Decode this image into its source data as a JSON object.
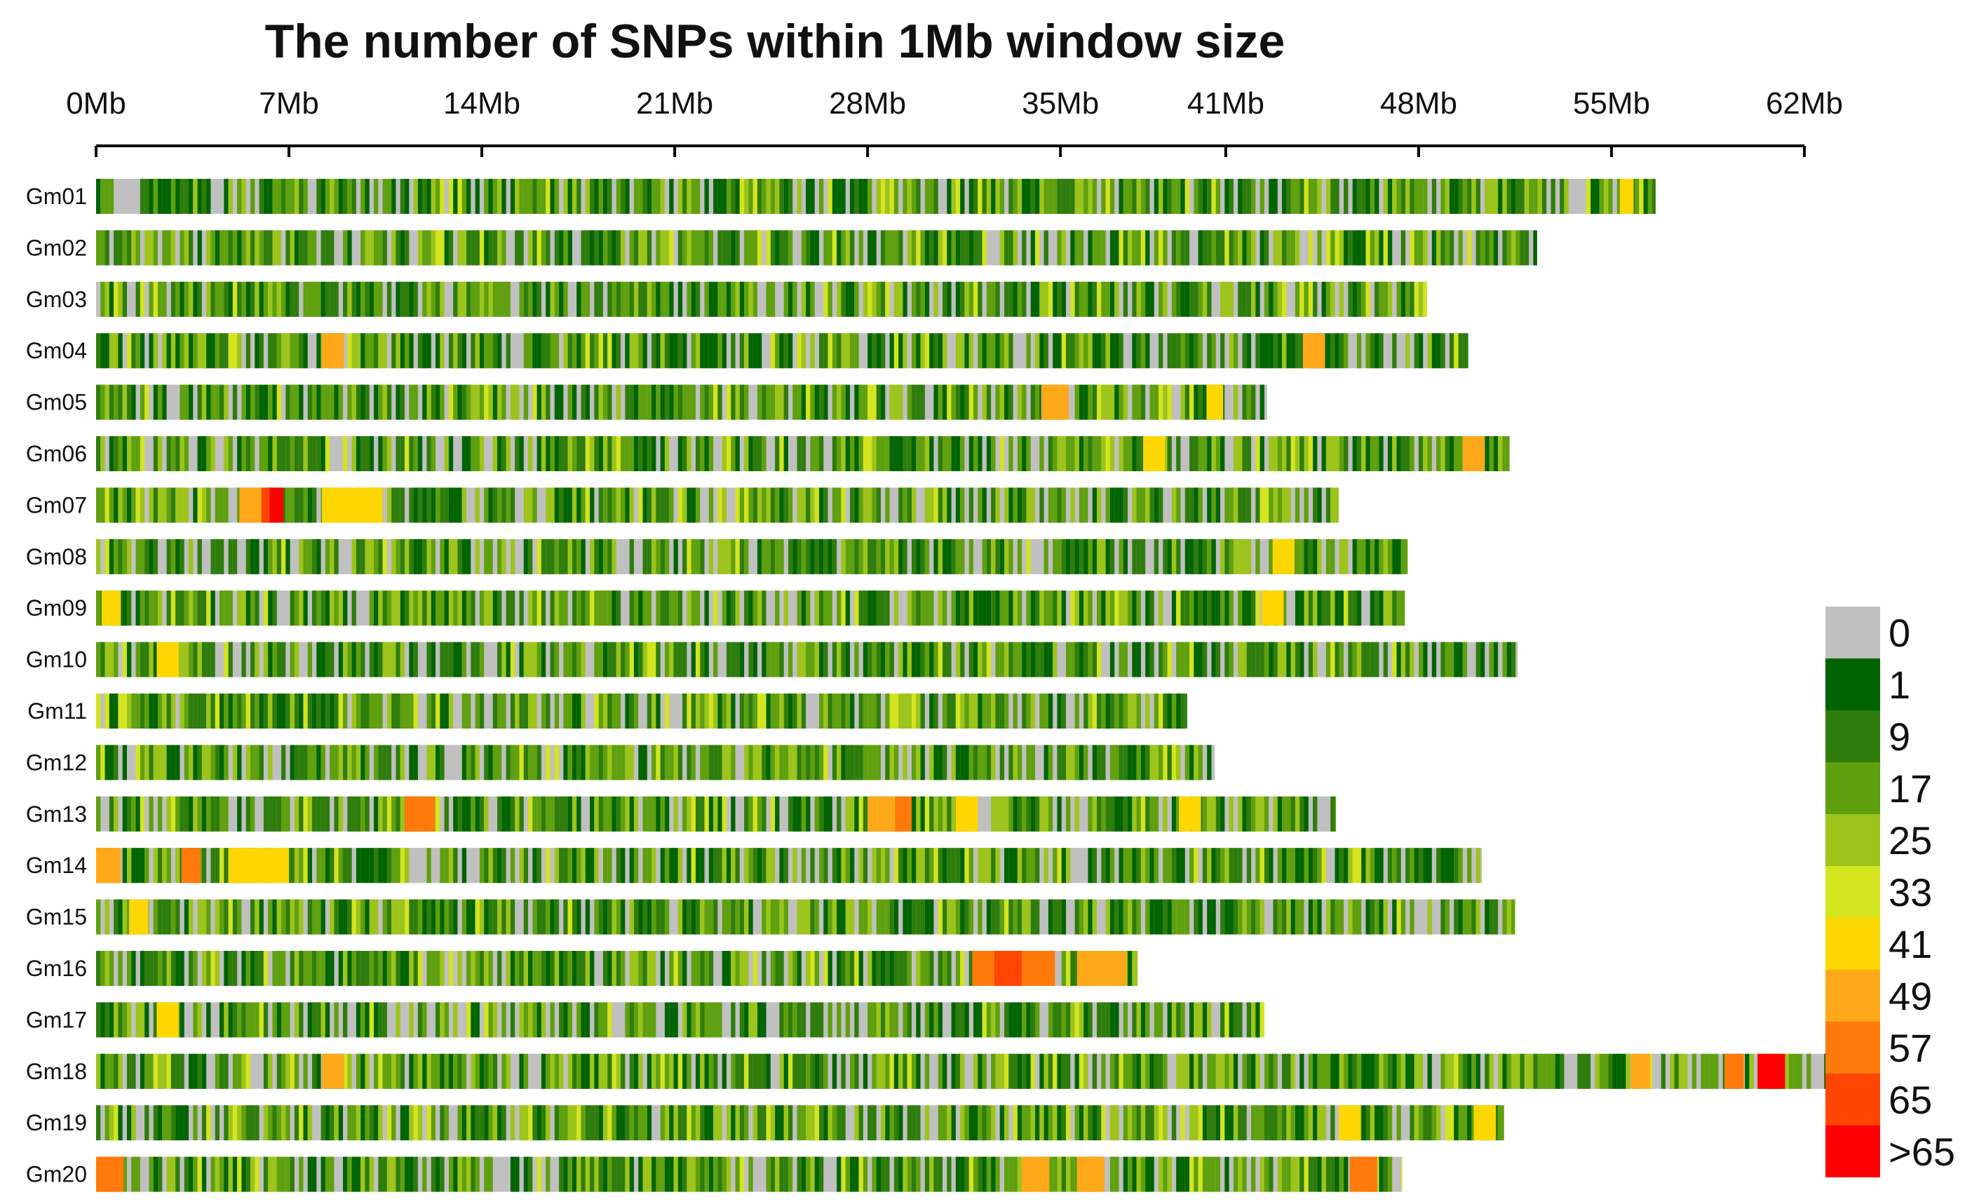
{
  "chart_data": {
    "type": "heatmap",
    "title": "The number of SNPs within 1Mb window size",
    "xlabel": "",
    "ylabel": "",
    "x_unit": "Mb",
    "xlim": [
      0,
      62
    ],
    "x_ticks": [
      0,
      7,
      14,
      21,
      28,
      35,
      41,
      48,
      55,
      62
    ],
    "x_tick_labels": [
      "0Mb",
      "7Mb",
      "14Mb",
      "21Mb",
      "28Mb",
      "35Mb",
      "41Mb",
      "48Mb",
      "55Mb",
      "62Mb"
    ],
    "chromosomes": [
      {
        "name": "Gm01",
        "length_mb": 56.6,
        "hotspots": [
          {
            "start": 55.3,
            "end": 55.8,
            "bin": 6
          }
        ]
      },
      {
        "name": "Gm02",
        "length_mb": 52.3,
        "hotspots": []
      },
      {
        "name": "Gm03",
        "length_mb": 48.3,
        "hotspots": []
      },
      {
        "name": "Gm04",
        "length_mb": 49.8,
        "hotspots": [
          {
            "start": 8.2,
            "end": 9.0,
            "bin": 7
          },
          {
            "start": 43.8,
            "end": 44.6,
            "bin": 7
          }
        ]
      },
      {
        "name": "Gm05",
        "length_mb": 42.5,
        "hotspots": [
          {
            "start": 34.3,
            "end": 35.3,
            "bin": 7
          },
          {
            "start": 40.3,
            "end": 40.9,
            "bin": 6
          }
        ]
      },
      {
        "name": "Gm06",
        "length_mb": 51.3,
        "hotspots": [
          {
            "start": 38.0,
            "end": 38.8,
            "bin": 6
          },
          {
            "start": 49.6,
            "end": 50.4,
            "bin": 7
          }
        ]
      },
      {
        "name": "Gm07",
        "length_mb": 45.1,
        "hotspots": [
          {
            "start": 5.2,
            "end": 6.0,
            "bin": 7
          },
          {
            "start": 6.0,
            "end": 6.3,
            "bin": 9
          },
          {
            "start": 6.3,
            "end": 6.8,
            "bin": 10
          },
          {
            "start": 8.2,
            "end": 10.4,
            "bin": 6
          }
        ]
      },
      {
        "name": "Gm08",
        "length_mb": 47.6,
        "hotspots": [
          {
            "start": 42.7,
            "end": 43.5,
            "bin": 6
          }
        ]
      },
      {
        "name": "Gm09",
        "length_mb": 47.5,
        "hotspots": [
          {
            "start": 0.2,
            "end": 0.9,
            "bin": 6
          },
          {
            "start": 42.3,
            "end": 43.1,
            "bin": 6
          }
        ]
      },
      {
        "name": "Gm10",
        "length_mb": 51.6,
        "hotspots": [
          {
            "start": 2.2,
            "end": 3.0,
            "bin": 6
          }
        ]
      },
      {
        "name": "Gm11",
        "length_mb": 39.6,
        "hotspots": []
      },
      {
        "name": "Gm12",
        "length_mb": 40.6,
        "hotspots": []
      },
      {
        "name": "Gm13",
        "length_mb": 45.0,
        "hotspots": [
          {
            "start": 11.2,
            "end": 12.3,
            "bin": 8
          },
          {
            "start": 28.0,
            "end": 29.0,
            "bin": 7
          },
          {
            "start": 29.0,
            "end": 29.6,
            "bin": 8
          },
          {
            "start": 31.2,
            "end": 32.0,
            "bin": 6
          },
          {
            "start": 39.3,
            "end": 40.1,
            "bin": 6
          }
        ]
      },
      {
        "name": "Gm14",
        "length_mb": 50.3,
        "hotspots": [
          {
            "start": 0.0,
            "end": 0.9,
            "bin": 7
          },
          {
            "start": 3.1,
            "end": 3.8,
            "bin": 8
          },
          {
            "start": 4.8,
            "end": 7.0,
            "bin": 6
          }
        ]
      },
      {
        "name": "Gm15",
        "length_mb": 51.5,
        "hotspots": [
          {
            "start": 1.2,
            "end": 1.9,
            "bin": 6
          }
        ]
      },
      {
        "name": "Gm16",
        "length_mb": 37.8,
        "hotspots": [
          {
            "start": 31.8,
            "end": 32.6,
            "bin": 8
          },
          {
            "start": 32.6,
            "end": 33.6,
            "bin": 9
          },
          {
            "start": 33.6,
            "end": 34.8,
            "bin": 8
          },
          {
            "start": 35.6,
            "end": 37.4,
            "bin": 7
          }
        ]
      },
      {
        "name": "Gm17",
        "length_mb": 42.4,
        "hotspots": [
          {
            "start": 2.2,
            "end": 3.0,
            "bin": 6
          }
        ]
      },
      {
        "name": "Gm18",
        "length_mb": 62.9,
        "hotspots": [
          {
            "start": 8.2,
            "end": 9.0,
            "bin": 7
          },
          {
            "start": 55.7,
            "end": 56.4,
            "bin": 7
          },
          {
            "start": 59.1,
            "end": 59.8,
            "bin": 8
          },
          {
            "start": 60.3,
            "end": 61.3,
            "bin": 10
          }
        ]
      },
      {
        "name": "Gm19",
        "length_mb": 51.1,
        "hotspots": [
          {
            "start": 45.1,
            "end": 45.9,
            "bin": 6
          },
          {
            "start": 50.0,
            "end": 50.8,
            "bin": 6
          }
        ]
      },
      {
        "name": "Gm20",
        "length_mb": 47.4,
        "hotspots": [
          {
            "start": 0.0,
            "end": 1.0,
            "bin": 8
          },
          {
            "start": 33.6,
            "end": 34.6,
            "bin": 7
          },
          {
            "start": 35.6,
            "end": 36.6,
            "bin": 7
          },
          {
            "start": 45.5,
            "end": 46.5,
            "bin": 8
          }
        ]
      }
    ],
    "legend": {
      "placement": "right",
      "bins": [
        {
          "label": "0",
          "color": "#c0c0c0"
        },
        {
          "label": "1",
          "color": "#006400"
        },
        {
          "label": "9",
          "color": "#2e7d0c"
        },
        {
          "label": "17",
          "color": "#5fa00e"
        },
        {
          "label": "25",
          "color": "#9cc41a"
        },
        {
          "label": "33",
          "color": "#d4e41e"
        },
        {
          "label": "41",
          "color": "#ffd700"
        },
        {
          "label": "49",
          "color": "#ffa81a"
        },
        {
          "label": "57",
          "color": "#ff7a0a"
        },
        {
          "label": "65",
          "color": "#ff4500"
        },
        {
          "label": ">65",
          "color": "#ff0000"
        }
      ]
    }
  }
}
